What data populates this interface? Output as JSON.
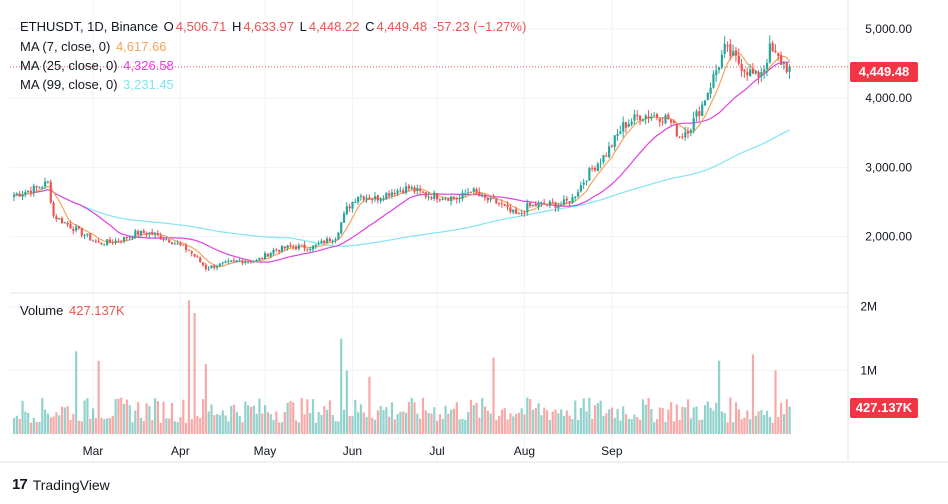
{
  "legend": {
    "symbol": "ETHUSDT, 1D, Binance",
    "open_label": "O",
    "open": "4,506.71",
    "high_label": "H",
    "high": "4,633.97",
    "low_label": "L",
    "low": "4,448.22",
    "close_label": "C",
    "close": "4,449.48",
    "change": "-57.23 (−1.27%)",
    "ma7_label": "MA (7, close, 0)",
    "ma7_value": "4,617.66",
    "ma25_label": "MA (25, close, 0)",
    "ma25_value": "4,326.58",
    "ma99_label": "MA (99, close, 0)",
    "ma99_value": "3,231.45",
    "volume_label": "Volume",
    "volume_value": "427.137K"
  },
  "badges": {
    "last_price": "4,449.48",
    "last_volume": "427.137K"
  },
  "brand": {
    "logo": "17",
    "name": "TradingView"
  },
  "colors": {
    "up": "#26a69a",
    "down": "#ef5350",
    "ma7": "#f5a45a",
    "ma25": "#e040e0",
    "ma99": "#7fe5f0",
    "grid": "#f0f3fa",
    "axis_text": "#131722",
    "pane_border": "#e0e3eb"
  },
  "chart_data": [
    {
      "type": "candlestick",
      "title": "ETHUSDT, 1D, Binance",
      "x_tick_labels": [
        "Mar",
        "Apr",
        "May",
        "Jun",
        "Jul",
        "Aug",
        "Sep"
      ],
      "y_tick_labels": [
        "2,000.00",
        "3,000.00",
        "4,000.00",
        "5,000.00"
      ],
      "y_ticks": [
        2000,
        3000,
        4000,
        5000
      ],
      "ylim": [
        1200,
        5300
      ],
      "grid": true,
      "last_price": 4449.48,
      "close_anchors": [
        [
          0,
          2600
        ],
        [
          8,
          2700
        ],
        [
          12,
          2780
        ],
        [
          14,
          2300
        ],
        [
          18,
          2200
        ],
        [
          22,
          2100
        ],
        [
          26,
          2000
        ],
        [
          30,
          1900
        ],
        [
          38,
          1950
        ],
        [
          43,
          2050
        ],
        [
          48,
          2050
        ],
        [
          55,
          1950
        ],
        [
          62,
          1800
        ],
        [
          68,
          1550
        ],
        [
          74,
          1600
        ],
        [
          80,
          1650
        ],
        [
          86,
          1650
        ],
        [
          92,
          1800
        ],
        [
          98,
          1850
        ],
        [
          106,
          1850
        ],
        [
          114,
          2000
        ],
        [
          118,
          2400
        ],
        [
          122,
          2600
        ],
        [
          128,
          2550
        ],
        [
          134,
          2650
        ],
        [
          140,
          2700
        ],
        [
          146,
          2600
        ],
        [
          152,
          2580
        ],
        [
          158,
          2550
        ],
        [
          160,
          2620
        ],
        [
          162,
          2680
        ],
        [
          166,
          2550
        ],
        [
          172,
          2480
        ],
        [
          176,
          2350
        ],
        [
          179,
          2300
        ],
        [
          182,
          2430
        ],
        [
          188,
          2470
        ],
        [
          194,
          2460
        ],
        [
          198,
          2550
        ],
        [
          204,
          2930
        ],
        [
          210,
          3200
        ],
        [
          216,
          3600
        ],
        [
          222,
          3750
        ],
        [
          228,
          3750
        ],
        [
          232,
          3700
        ],
        [
          236,
          3450
        ],
        [
          240,
          3600
        ],
        [
          244,
          3900
        ],
        [
          248,
          4300
        ],
        [
          252,
          4700
        ],
        [
          256,
          4550
        ],
        [
          260,
          4400
        ],
        [
          263,
          4300
        ],
        [
          266,
          4450
        ],
        [
          268,
          4700
        ],
        [
          270,
          4600
        ],
        [
          274,
          4449.48
        ]
      ],
      "series": [
        {
          "name": "MA (7, close, 0)",
          "last": 4617.66
        },
        {
          "name": "MA (25, close, 0)",
          "last": 4326.58
        },
        {
          "name": "MA (99, close, 0)",
          "last": 3231.45
        }
      ]
    },
    {
      "type": "bar",
      "title": "Volume",
      "y_tick_labels": [
        "1M",
        "2M"
      ],
      "y_ticks": [
        1000000,
        2000000
      ],
      "ylim": [
        0,
        2200000
      ],
      "last_value": 427137,
      "typical_volume": 500000,
      "spikes": [
        [
          22,
          1300000
        ],
        [
          30,
          1150000
        ],
        [
          62,
          2100000
        ],
        [
          64,
          1900000
        ],
        [
          68,
          1100000
        ],
        [
          116,
          1500000
        ],
        [
          118,
          1000000
        ],
        [
          126,
          900000
        ],
        [
          170,
          1200000
        ],
        [
          250,
          1150000
        ],
        [
          262,
          1250000
        ],
        [
          270,
          1000000
        ]
      ]
    }
  ]
}
